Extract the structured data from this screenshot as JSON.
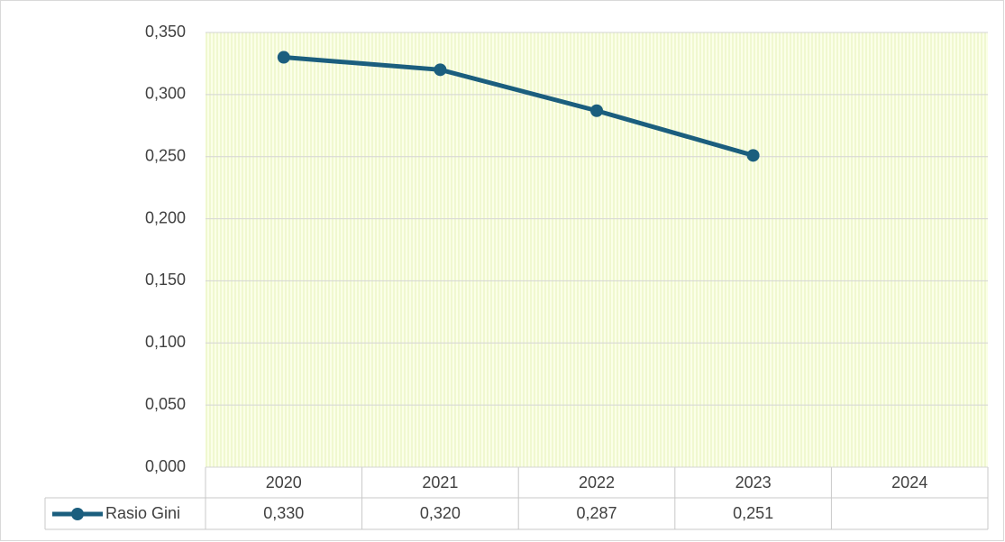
{
  "chart_data": {
    "type": "line",
    "categories": [
      "2020",
      "2021",
      "2022",
      "2023",
      "2024"
    ],
    "series": [
      {
        "name": "Rasio Gini",
        "color": "#1b5e7e",
        "values": [
          0.33,
          0.32,
          0.287,
          0.251,
          null
        ],
        "value_labels": [
          "0,330",
          "0,320",
          "0,287",
          "0,251",
          null
        ]
      }
    ],
    "ylim": [
      0,
      0.35
    ],
    "yticks": [
      {
        "value": 0,
        "label": "0,000"
      },
      {
        "value": 0.05,
        "label": "0,050"
      },
      {
        "value": 0.1,
        "label": "0,100"
      },
      {
        "value": 0.15,
        "label": "0,150"
      },
      {
        "value": 0.2,
        "label": "0,200"
      },
      {
        "value": 0.25,
        "label": "0,250"
      },
      {
        "value": 0.3,
        "label": "0,300"
      },
      {
        "value": 0.35,
        "label": "0,350"
      }
    ],
    "grid": true
  }
}
